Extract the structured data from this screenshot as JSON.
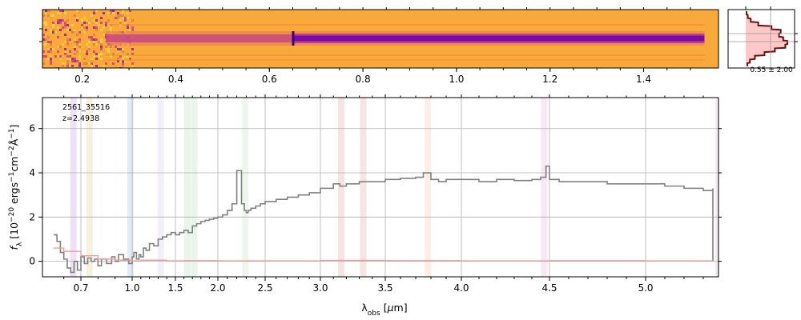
{
  "chart_data": [
    {
      "type": "heatmap",
      "x_ticks": [
        0.2,
        0.4,
        0.6,
        0.8,
        1.0,
        1.2,
        1.4
      ],
      "colormap": "plasma",
      "colors": {
        "background": "#f9a93a",
        "trace_core": "#7a0aa3",
        "trace_edge": "#c33e8a"
      },
      "trace_start": 0.25,
      "trace_break": 0.65,
      "trace_end": 1.53,
      "noise_end": 0.31
    },
    {
      "type": "line",
      "annotation": "0.55 ± 2.00",
      "fill_color": "#ff9a9a",
      "line_color": "#6b1010",
      "profile": [
        0.02,
        0.05,
        0.12,
        0.3,
        0.62,
        0.84,
        0.8,
        0.9,
        1.0,
        0.95,
        0.7,
        0.45,
        0.22,
        0.1,
        0.04
      ]
    },
    {
      "type": "line",
      "object_id": "2561_35516",
      "redshift": "z=2.4938",
      "ylabel": "f_λ [10^{-20} ergs^{-1}cm^{-2}Å^{-1}]",
      "xlabel": "λ_obs [μm]",
      "ylim": [
        -0.7,
        7.4
      ],
      "x_ticks": [
        "0.7",
        "1.0",
        "1.5",
        "2.0",
        "2.5",
        "3.0",
        "3.5",
        "4.0",
        "4.5",
        "5.0"
      ],
      "x_tick_values": [
        0.7,
        1.0,
        1.5,
        2.0,
        2.5,
        3.0,
        3.5,
        4.0,
        4.5,
        5.0
      ],
      "y_ticks": [
        0,
        2,
        4,
        6
      ],
      "grid": true,
      "series": [
        {
          "color": "#808080",
          "x": [
            0.54,
            0.56,
            0.58,
            0.6,
            0.62,
            0.64,
            0.66,
            0.68,
            0.7,
            0.72,
            0.74,
            0.76,
            0.78,
            0.8,
            0.82,
            0.85,
            0.88,
            0.9,
            0.92,
            0.95,
            0.98,
            1.0,
            1.02,
            1.05,
            1.08,
            1.1,
            1.13,
            1.16,
            1.2,
            1.25,
            1.3,
            1.35,
            1.4,
            1.45,
            1.5,
            1.55,
            1.6,
            1.65,
            1.7,
            1.75,
            1.8,
            1.85,
            1.9,
            1.95,
            2.0,
            2.05,
            2.1,
            2.15,
            2.2,
            2.25,
            2.28,
            2.3,
            2.32,
            2.35,
            2.4,
            2.45,
            2.5,
            2.6,
            2.7,
            2.8,
            2.9,
            3.0,
            3.1,
            3.15,
            3.2,
            3.3,
            3.4,
            3.5,
            3.6,
            3.7,
            3.75,
            3.8,
            3.85,
            3.9,
            4.0,
            4.1,
            4.2,
            4.3,
            4.4,
            4.45,
            4.48,
            4.5,
            4.55,
            4.6,
            4.7,
            4.8,
            4.9,
            5.0,
            5.1,
            5.2,
            5.3,
            5.35
          ],
          "y": [
            1.2,
            0.9,
            0.4,
            0.1,
            -0.3,
            -0.5,
            0.0,
            -0.4,
            0.2,
            -0.1,
            0.15,
            0.0,
            0.1,
            -0.2,
            0.1,
            -0.1,
            0.2,
            0.0,
            0.3,
            0.1,
            -0.1,
            0.2,
            0.4,
            0.1,
            0.3,
            0.2,
            0.6,
            0.5,
            0.8,
            0.7,
            1.0,
            1.1,
            1.2,
            1.3,
            1.2,
            1.3,
            1.4,
            1.3,
            1.6,
            1.7,
            1.8,
            1.85,
            1.9,
            1.95,
            2.0,
            2.1,
            2.3,
            2.6,
            4.1,
            2.6,
            2.3,
            2.2,
            2.3,
            2.4,
            2.5,
            2.6,
            2.7,
            2.8,
            2.9,
            3.0,
            3.1,
            3.3,
            3.5,
            3.4,
            3.5,
            3.6,
            3.6,
            3.7,
            3.75,
            3.8,
            4.0,
            3.7,
            3.6,
            3.7,
            3.7,
            3.6,
            3.7,
            3.65,
            3.7,
            3.8,
            4.3,
            3.7,
            3.6,
            3.6,
            3.6,
            3.5,
            3.5,
            3.5,
            3.4,
            3.3,
            3.2,
            3.3
          ]
        },
        {
          "color": "#f29c9c",
          "x": [
            0.54,
            0.6,
            0.7,
            0.8,
            0.9,
            1.0,
            1.1,
            1.2,
            1.4,
            1.6,
            2.0,
            2.5,
            3.0,
            3.5,
            4.0,
            4.5,
            5.0,
            5.35
          ],
          "y": [
            0.6,
            0.45,
            0.25,
            0.1,
            0.05,
            0.02,
            0.05,
            0.05,
            0.02,
            0.03,
            0.02,
            0.02,
            0.04,
            0.03,
            0.02,
            0.03,
            0.02,
            0.03
          ]
        }
      ],
      "line_bands": [
        {
          "x": 0.656,
          "color": "#ccaadd"
        },
        {
          "x": 0.75,
          "color": "#e6d6a0"
        },
        {
          "x": 0.99,
          "color": "#b0c8e6"
        },
        {
          "x": 1.33,
          "color": "#ddd0ee"
        },
        {
          "x": 1.64,
          "color": "#bfe0c8"
        },
        {
          "x": 1.72,
          "color": "#bfe0c8"
        },
        {
          "x": 2.29,
          "color": "#c8e6c8"
        },
        {
          "x": 3.16,
          "color": "#e6b0b0"
        },
        {
          "x": 3.33,
          "color": "#e6b0b0"
        },
        {
          "x": 3.78,
          "color": "#f6cfb8"
        },
        {
          "x": 4.47,
          "color": "#e6c0d8"
        },
        {
          "x": 5.38,
          "color": "#e6c0d8"
        }
      ]
    }
  ]
}
